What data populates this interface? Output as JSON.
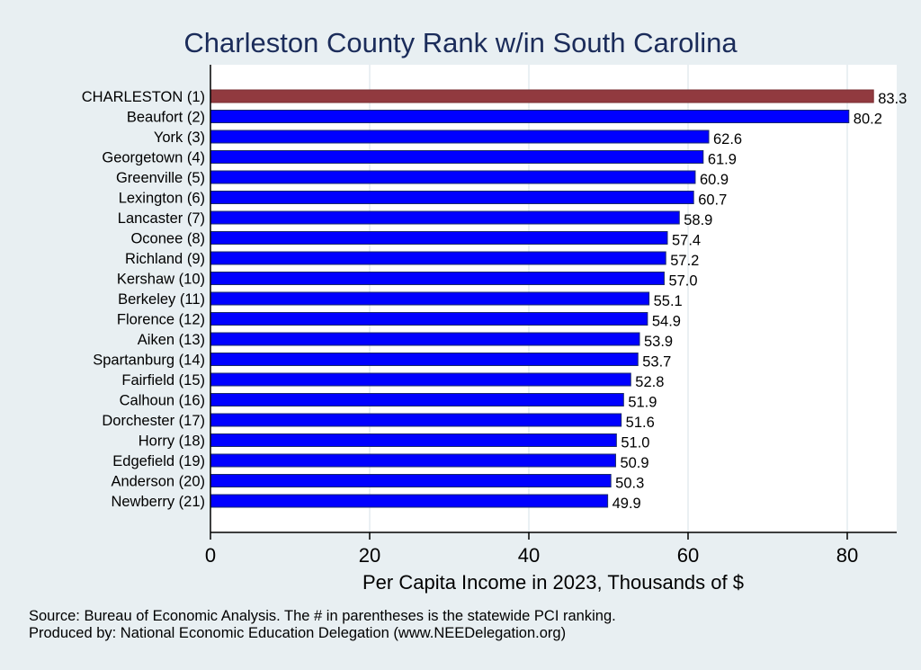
{
  "chart_data": {
    "type": "bar",
    "orientation": "horizontal",
    "title": "Charleston County Rank w/in South Carolina",
    "xlabel": "Per Capita Income in 2023, Thousands of $",
    "ylabel": "",
    "xlim": [
      0,
      86.5
    ],
    "xticks": [
      0,
      20,
      40,
      60,
      80
    ],
    "grid": true,
    "categories": [
      "CHARLESTON  (1)",
      "Beaufort  (2)",
      "York  (3)",
      "Georgetown  (4)",
      "Greenville  (5)",
      "Lexington  (6)",
      "Lancaster  (7)",
      "Oconee  (8)",
      "Richland  (9)",
      "Kershaw (10)",
      "Berkeley (11)",
      "Florence (12)",
      "Aiken (13)",
      "Spartanburg (14)",
      "Fairfield (15)",
      "Calhoun (16)",
      "Dorchester (17)",
      "Horry (18)",
      "Edgefield (19)",
      "Anderson (20)",
      "Newberry (21)"
    ],
    "values": [
      83.3,
      80.2,
      62.6,
      61.9,
      60.9,
      60.7,
      58.9,
      57.4,
      57.2,
      57.0,
      55.1,
      54.9,
      53.9,
      53.7,
      52.8,
      51.9,
      51.6,
      51.0,
      50.9,
      50.3,
      49.9
    ],
    "value_labels": [
      "83.3",
      "80.2",
      "62.6",
      "61.9",
      "60.9",
      "60.7",
      "58.9",
      "57.4",
      "57.2",
      "57.0",
      "55.1",
      "54.9",
      "53.9",
      "53.7",
      "52.8",
      "51.9",
      "51.6",
      "51.0",
      "50.9",
      "50.3",
      "49.9"
    ],
    "highlight_color": "#913a3f",
    "bar_color": "#0000ff"
  },
  "notes": {
    "source": "Source: Bureau of Economic Analysis. The # in parentheses is the statewide PCI ranking.",
    "produced": "Produced by: National Economic Education Delegation (www.NEEDelegation.org)"
  }
}
